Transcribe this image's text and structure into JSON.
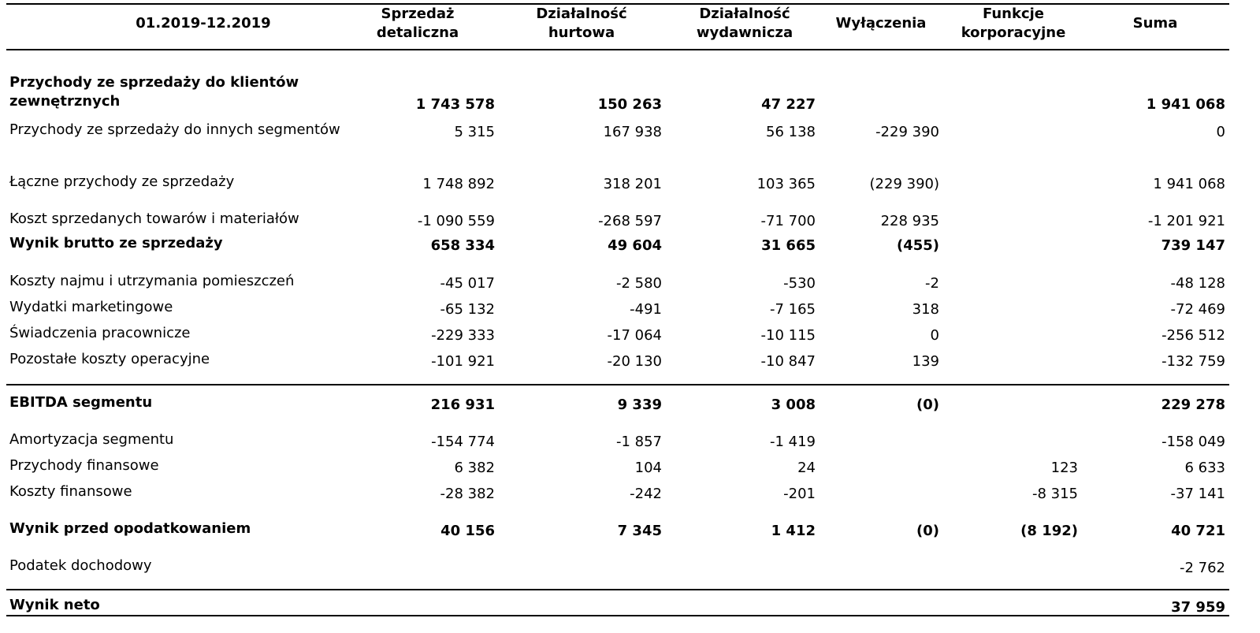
{
  "table": {
    "header": [
      "01.2019-12.2019",
      "Sprzedaż detaliczna",
      "Działalność hurtowa",
      "Działalność wydawnicza",
      "Wyłączenia",
      "Funkcje korporacyjne",
      "Suma"
    ],
    "rows": [
      [
        "Przychody ze sprzedaży do klientów zewnętrznych",
        "1 743 578",
        "150 263",
        "47 227",
        null,
        null,
        "1 941 068"
      ],
      [
        "Przychody ze sprzedaży do innych segmentów",
        "5 315",
        "167 938",
        "56 138",
        "-229 390",
        null,
        "0"
      ],
      [
        "Łączne przychody ze sprzedaży",
        "1 748 892",
        "318 201",
        "103 365",
        "(229 390)",
        null,
        "1 941 068"
      ],
      [
        "Koszt sprzedanych towarów i materiałów",
        "-1 090 559",
        "-268 597",
        "-71 700",
        "228 935",
        null,
        "-1 201 921"
      ],
      [
        "Wynik brutto ze sprzedaży",
        "658 334",
        "49 604",
        "31 665",
        "(455)",
        null,
        "739 147"
      ],
      [
        "Koszty najmu i utrzymania pomieszczeń",
        "-45 017",
        "-2 580",
        "-530",
        "-2",
        null,
        "-48 128"
      ],
      [
        "Wydatki marketingowe",
        "-65 132",
        "-491",
        "-7 165",
        "318",
        null,
        "-72 469"
      ],
      [
        "Świadczenia pracownicze",
        "-229 333",
        "-17 064",
        "-10 115",
        "0",
        null,
        "-256 512"
      ],
      [
        "Pozostałe koszty operacyjne",
        "-101 921",
        "-20 130",
        "-10 847",
        "139",
        null,
        "-132 759"
      ],
      [
        "EBITDA segmentu",
        "216 931",
        "9 339",
        "3 008",
        "(0)",
        null,
        "229 278"
      ],
      [
        "Amortyzacja segmentu",
        "-154 774",
        "-1 857",
        "-1 419",
        null,
        null,
        "-158 049"
      ],
      [
        "Przychody finansowe",
        "6 382",
        "104",
        "24",
        null,
        "123",
        "6 633"
      ],
      [
        "Koszty finansowe",
        "-28 382",
        "-242",
        "-201",
        null,
        "-8 315",
        "-37 141"
      ],
      [
        "Wynik przed opodatkowaniem",
        "40 156",
        "7 345",
        "1 412",
        "(0)",
        "(8 192)",
        "40 721"
      ],
      [
        "Podatek dochodowy",
        null,
        null,
        null,
        null,
        null,
        "-2 762"
      ],
      [
        "Wynik neto",
        null,
        null,
        null,
        null,
        null,
        "37 959"
      ]
    ]
  }
}
